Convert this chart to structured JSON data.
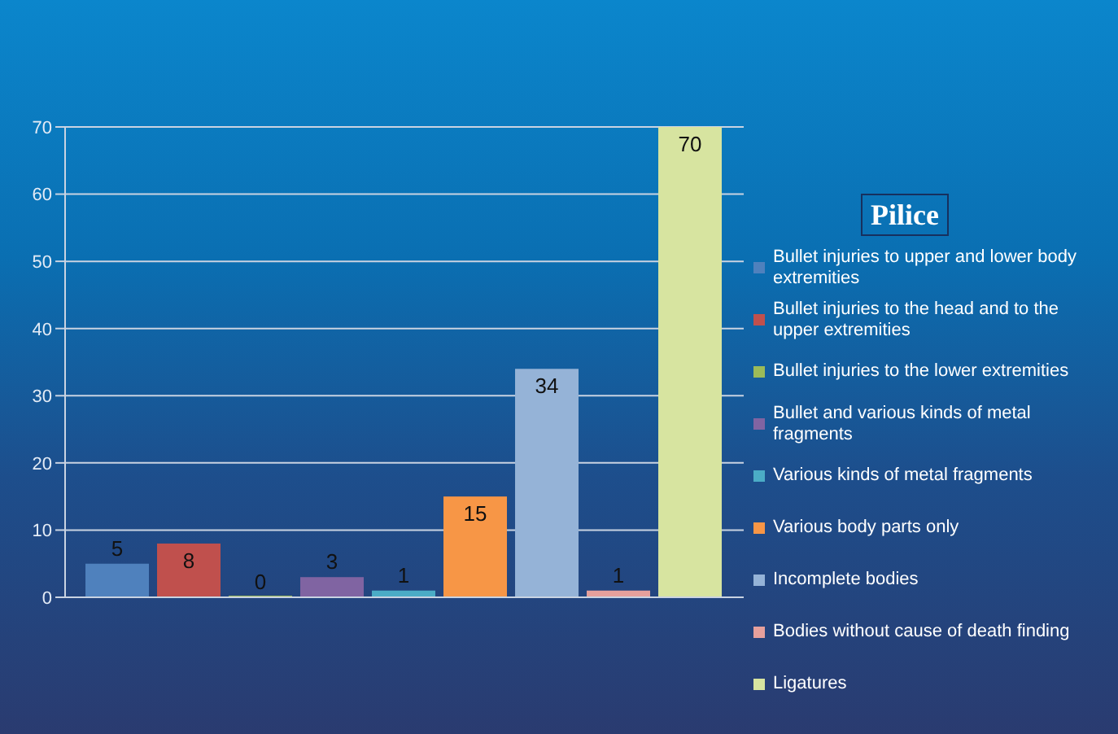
{
  "chart_data": {
    "type": "bar",
    "title": "Pilice",
    "categories": [
      null
    ],
    "series": [
      {
        "name": "Bullet injuries to upper and lower body extremities",
        "color": "#4f81bd",
        "values": [
          5
        ]
      },
      {
        "name": "Bullet injuries to the head and to the upper extremities",
        "color": "#c0504d",
        "values": [
          8
        ]
      },
      {
        "name": "Bullet injuries to the lower extremities",
        "color": "#9bbb59",
        "values": [
          0
        ]
      },
      {
        "name": "Bullet and various kinds of metal fragments",
        "color": "#8064a2",
        "values": [
          3
        ]
      },
      {
        "name": "Various kinds of metal fragments",
        "color": "#4bacc6",
        "values": [
          1
        ]
      },
      {
        "name": "Various body parts only",
        "color": "#f79646",
        "values": [
          15
        ]
      },
      {
        "name": "Incomplete bodies",
        "color": "#95b3d7",
        "values": [
          34
        ]
      },
      {
        "name": "Bodies without cause of death finding",
        "color": "#e6a09c",
        "values": [
          1
        ]
      },
      {
        "name": "Ligatures",
        "color": "#d7e4a0",
        "values": [
          70
        ]
      }
    ],
    "ylim": [
      0,
      70
    ],
    "yticks": [
      0,
      10,
      20,
      30,
      40,
      50,
      60,
      70
    ],
    "grid": "y",
    "legend": "right",
    "data_labels": true
  }
}
